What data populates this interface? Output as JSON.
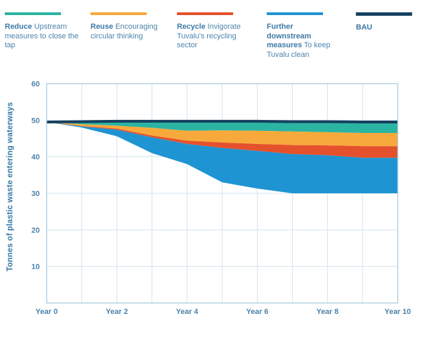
{
  "legend": {
    "items": [
      {
        "id": "reduce",
        "title": "Reduce",
        "desc": "Upstream measures to close the tap",
        "color": "#2CB4A2"
      },
      {
        "id": "reuse",
        "title": "Reuse",
        "desc": "Encouraging circular thinking",
        "color": "#F8A93B"
      },
      {
        "id": "recycle",
        "title": "Recycle",
        "desc": "Invigorate Tuvalu's recycling sector",
        "color": "#E5512D"
      },
      {
        "id": "downstream",
        "title": "Further downstream measures",
        "desc": "To keep Tuvalu clean",
        "color": "#1E94D2"
      },
      {
        "id": "bau",
        "title": "BAU",
        "desc": "",
        "color": "#16405F"
      }
    ]
  },
  "chart_data": {
    "type": "area",
    "title": "",
    "xlabel": "",
    "ylabel": "Tonnes of plastic waste entering waterways",
    "ylim": [
      0,
      60
    ],
    "ytick_interval": 10,
    "ytick_labels": [
      "10",
      "20",
      "30",
      "40",
      "50",
      "60"
    ],
    "x": [
      0,
      1,
      2,
      3,
      4,
      5,
      6,
      7,
      8,
      9,
      10
    ],
    "xtick_years": [
      0,
      2,
      4,
      6,
      8,
      10
    ],
    "xtick_labels": [
      "Year 0",
      "Year 2",
      "Year 4",
      "Year 6",
      "Year 8",
      "Year 10"
    ],
    "grid": true,
    "legend_position": "top",
    "bau_line": {
      "name": "BAU",
      "color": "#16405F",
      "values": [
        49.5,
        49.6,
        49.7,
        49.7,
        49.7,
        49.7,
        49.7,
        49.6,
        49.6,
        49.5,
        49.5
      ]
    },
    "series": [
      {
        "name": "Reduce",
        "color": "#2CB4A2",
        "values": [
          0,
          0.7,
          1.2,
          1.8,
          2.6,
          2.5,
          2.6,
          2.7,
          2.9,
          3.0,
          3.0
        ]
      },
      {
        "name": "Reuse",
        "color": "#F8A93B",
        "values": [
          0,
          0.5,
          0.8,
          2.1,
          2.7,
          3.3,
          3.6,
          3.7,
          3.6,
          3.6,
          3.6
        ]
      },
      {
        "name": "Recycle",
        "color": "#E5512D",
        "values": [
          0,
          0.1,
          0.3,
          0.5,
          0.9,
          1.5,
          1.9,
          2.5,
          2.7,
          3.2,
          3.2
        ]
      },
      {
        "name": "Further downstream measures",
        "color": "#1E94D2",
        "values": [
          0,
          0.3,
          1.8,
          4.3,
          5.5,
          9.4,
          10.3,
          10.7,
          10.4,
          9.7,
          9.7
        ]
      }
    ],
    "resulting_trajectory": [
      49.5,
      48.0,
      45.6,
      41.0,
      38.0,
      33.0,
      31.3,
      30.0,
      30.0,
      30.0,
      30.0
    ]
  },
  "style": {
    "tick_text_color": "#4C83AB",
    "grid_color": "#D3E4EE",
    "border_color": "#A4C6DA",
    "background": "#ffffff"
  }
}
